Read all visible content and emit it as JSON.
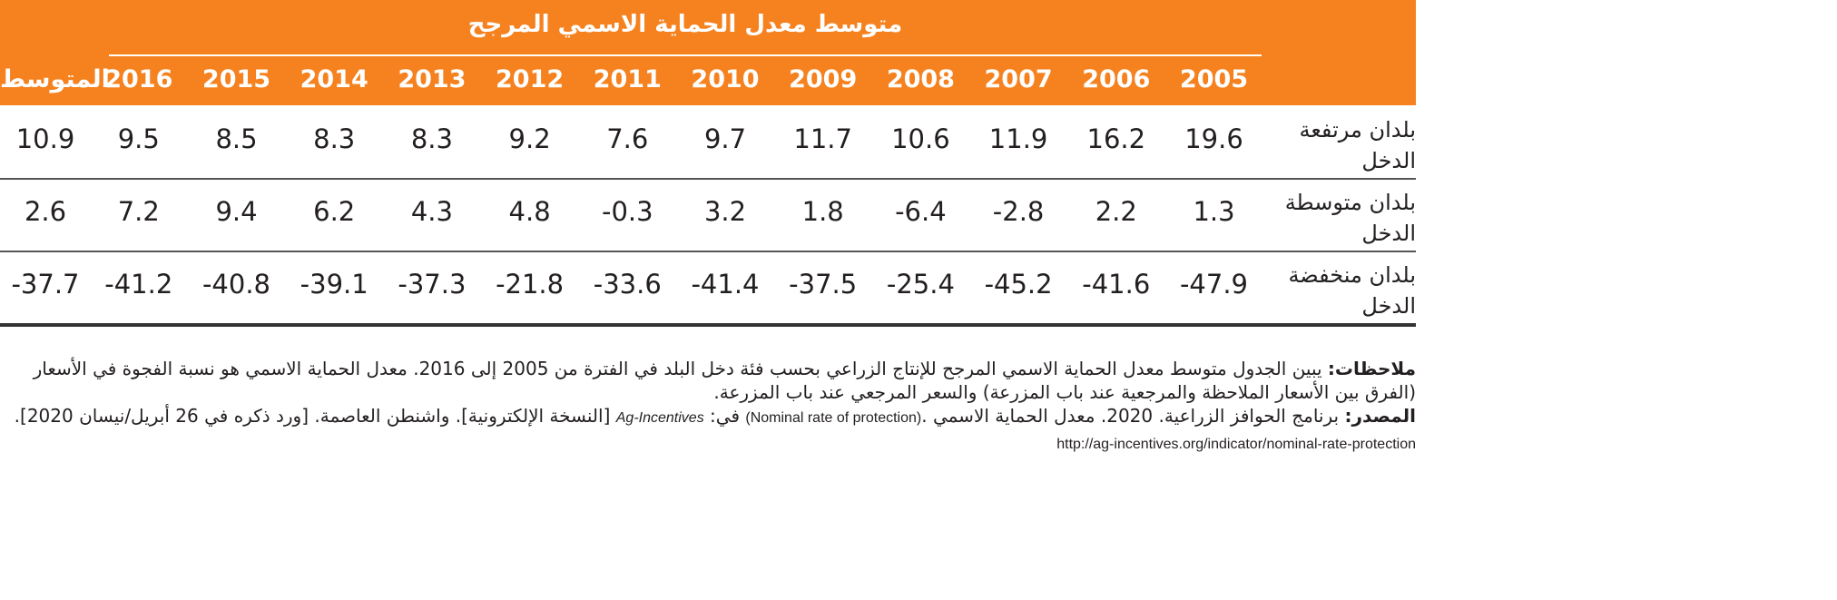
{
  "table": {
    "title": "متوسط معدل الحماية الاسمي المرجح",
    "columns": [
      "2005",
      "2006",
      "2007",
      "2008",
      "2009",
      "2010",
      "2011",
      "2012",
      "2013",
      "2014",
      "2015",
      "2016",
      "المتوسط"
    ],
    "rows": [
      {
        "label": "بلدان مرتفعة الدخل",
        "values": [
          "19.6",
          "16.2",
          "11.9",
          "10.6",
          "11.7",
          "9.7",
          "7.6",
          "9.2",
          "8.3",
          "8.3",
          "8.5",
          "9.5",
          "10.9"
        ]
      },
      {
        "label": "بلدان متوسطة الدخل",
        "values": [
          "1.3",
          "2.2",
          "-2.8",
          "-6.4",
          "1.8",
          "3.2",
          "-0.3",
          "4.8",
          "4.3",
          "6.2",
          "9.4",
          "7.2",
          "2.6"
        ]
      },
      {
        "label": "بلدان منخفضة الدخل",
        "values": [
          "-47.9",
          "-41.6",
          "-45.2",
          "-25.4",
          "-37.5",
          "-41.4",
          "-33.6",
          "-21.8",
          "-37.3",
          "-39.1",
          "-40.8",
          "-41.2",
          "-37.7"
        ]
      }
    ],
    "header_color": "#f5821f"
  },
  "notes": {
    "notes_label": "ملاحظات:",
    "notes_text": " يبين الجدول متوسط معدل الحماية الاسمي المرجح للإنتاج الزراعي بحسب فئة دخل البلد في الفترة من 2005 إلى 2016. معدل الحماية الاسمي هو نسبة الفجوة في الأسعار (الفرق بين الأسعار الملاحظة والمرجعية عند باب المزرعة) والسعر المرجعي عند باب المزرعة.",
    "source_label": "المصدر:",
    "source_text_1": " برنامج الحوافز الزراعية. 2020. معدل الحماية الاسمي .",
    "source_en_1": "(Nominal rate of protection)",
    "source_text_2": " في: ",
    "source_en_2": "Ag-Incentives",
    "source_text_3": " [النسخة الإلكترونية]. واشنطن العاصمة. [ورد ذكره في 26 أبريل/نيسان 2020]. ",
    "source_url": "http://ag-incentives.org/indicator/nominal-rate-protection"
  }
}
